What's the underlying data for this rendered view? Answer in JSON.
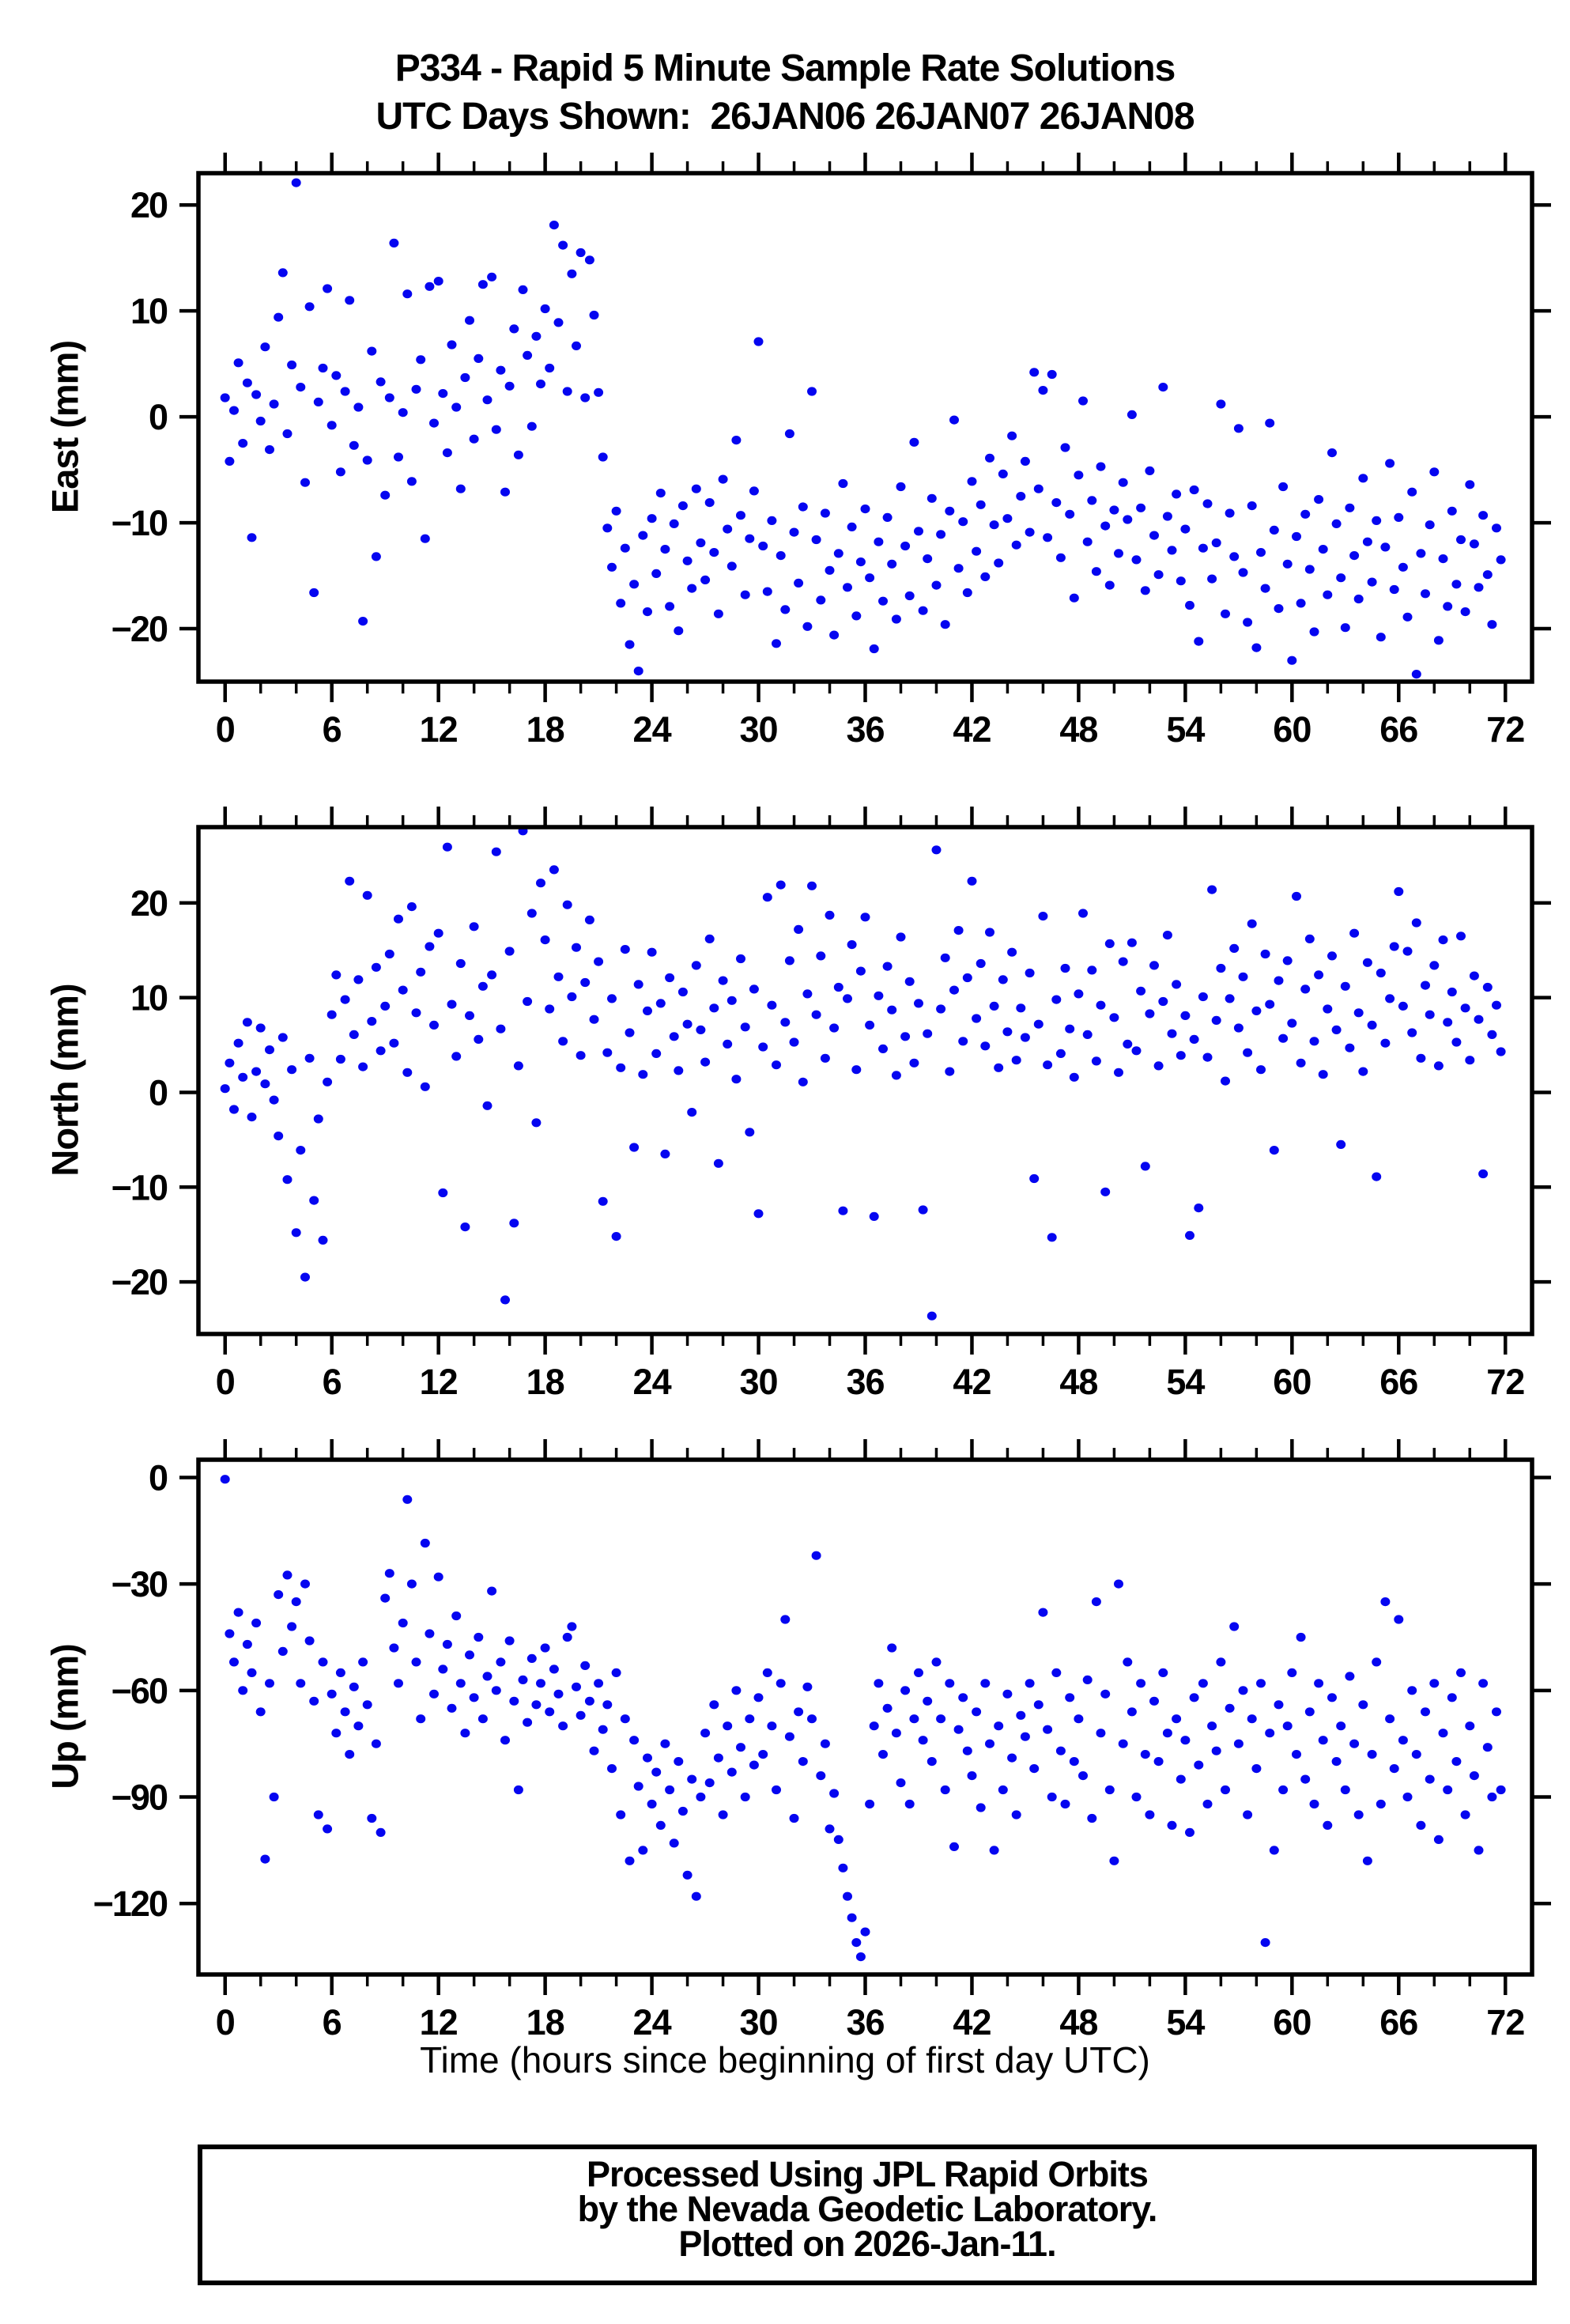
{
  "title": {
    "line1": "P334 - Rapid 5 Minute Sample Rate Solutions",
    "line2": "UTC Days Shown:  26JAN06 26JAN07 26JAN08"
  },
  "footer": {
    "lines": [
      "Processed Using JPL Rapid Orbits",
      "by the Nevada Geodetic Laboratory.",
      "Plotted on 2026-Jan-11."
    ]
  },
  "chart_data": {
    "type": "scatter",
    "title": "P334 - Rapid 5 Minute Sample Rate Solutions",
    "subtitle": "UTC Days Shown:  26JAN06 26JAN07 26JAN08",
    "xlabel": "Time (hours since beginning of first day UTC)",
    "marker_color": "#0505f0",
    "frame_color": "#000000",
    "xlim": [
      -1.5,
      73.5
    ],
    "x_ticks": [
      0,
      6,
      12,
      18,
      24,
      30,
      36,
      42,
      48,
      54,
      60,
      66,
      72
    ],
    "x_minor_step": 2,
    "grid": false,
    "legend": "none",
    "panels": [
      {
        "ylabel": "East (mm)",
        "ylim": [
          -25,
          23
        ],
        "y_ticks": [
          -20,
          -10,
          0,
          10,
          20
        ],
        "x_start": 0,
        "x_step": 0.25,
        "y": [
          1.8,
          -4.2,
          0.6,
          5.1,
          -2.5,
          3.2,
          -11.4,
          2.1,
          -0.4,
          6.6,
          -3.1,
          1.2,
          9.4,
          13.6,
          -1.6,
          4.9,
          22.1,
          2.8,
          -6.2,
          10.4,
          -16.6,
          1.4,
          4.6,
          12.1,
          -0.8,
          3.9,
          -5.2,
          2.4,
          11.0,
          -2.7,
          0.9,
          -19.3,
          -4.1,
          6.2,
          -13.2,
          3.3,
          -7.4,
          1.8,
          16.4,
          -3.8,
          0.4,
          11.6,
          -6.1,
          2.6,
          5.4,
          -11.5,
          12.3,
          -0.6,
          12.8,
          2.2,
          -3.4,
          6.8,
          0.9,
          -6.8,
          3.7,
          9.1,
          -2.1,
          5.5,
          12.5,
          1.6,
          13.2,
          -1.2,
          4.4,
          -7.1,
          2.9,
          8.3,
          -3.6,
          12.0,
          5.8,
          -0.9,
          7.6,
          3.1,
          10.2,
          4.6,
          18.1,
          8.9,
          16.2,
          2.4,
          13.5,
          6.7,
          15.5,
          1.8,
          14.8,
          9.6,
          2.3,
          -3.8,
          -10.5,
          -14.2,
          -8.9,
          -17.6,
          -12.4,
          -21.5,
          -15.8,
          -24.0,
          -11.2,
          -18.4,
          -9.6,
          -14.8,
          -7.2,
          -12.5,
          -17.9,
          -10.1,
          -20.2,
          -8.4,
          -13.6,
          -16.2,
          -6.8,
          -11.9,
          -15.4,
          -8.1,
          -12.8,
          -18.6,
          -5.9,
          -10.6,
          -14.1,
          -2.2,
          -9.3,
          -16.8,
          -11.5,
          -7.0,
          7.1,
          -12.2,
          -16.5,
          -9.8,
          -21.4,
          -13.1,
          -18.2,
          -1.6,
          -10.9,
          -15.7,
          -8.5,
          -19.8,
          2.4,
          -11.6,
          -17.3,
          -9.1,
          -14.5,
          -20.6,
          -12.9,
          -6.3,
          -16.1,
          -10.4,
          -18.8,
          -13.7,
          -8.7,
          -15.2,
          -21.9,
          -11.8,
          -17.4,
          -9.5,
          -13.9,
          -19.1,
          -6.6,
          -12.2,
          -16.9,
          -2.4,
          -10.8,
          -18.3,
          -13.4,
          -7.7,
          -15.9,
          -11.1,
          -19.6,
          -8.9,
          -0.3,
          -14.3,
          -9.9,
          -16.6,
          -6.1,
          -12.7,
          -8.3,
          -15.1,
          -3.9,
          -10.2,
          -13.8,
          -5.4,
          -9.6,
          -1.8,
          -12.1,
          -7.5,
          -4.2,
          -10.9,
          4.2,
          -6.8,
          2.5,
          -11.4,
          4.0,
          -8.1,
          -13.3,
          -2.9,
          -9.2,
          -17.1,
          -5.5,
          1.5,
          -11.8,
          -7.9,
          -14.6,
          -4.7,
          -10.3,
          -15.9,
          -8.8,
          -12.9,
          -6.2,
          -9.7,
          0.2,
          -13.5,
          -8.6,
          -16.4,
          -5.1,
          -11.2,
          -14.9,
          2.8,
          -9.4,
          -12.6,
          -7.3,
          -15.5,
          -10.6,
          -17.8,
          -6.9,
          -21.2,
          -12.4,
          -8.2,
          -15.3,
          -11.9,
          1.2,
          -18.6,
          -9.1,
          -13.2,
          -1.1,
          -14.7,
          -19.4,
          -8.4,
          -21.8,
          -12.8,
          -16.2,
          -0.6,
          -10.7,
          -18.1,
          -6.6,
          -13.9,
          -23.0,
          -11.3,
          -17.6,
          -9.2,
          -14.4,
          -20.3,
          -7.8,
          -12.5,
          -16.8,
          -3.4,
          -10.1,
          -15.2,
          -19.9,
          -8.6,
          -13.1,
          -17.2,
          -5.8,
          -11.8,
          -15.6,
          -9.8,
          -20.8,
          -12.3,
          -4.4,
          -16.3,
          -9.5,
          -14.2,
          -18.9,
          -7.1,
          -24.3,
          -12.9,
          -16.7,
          -10.2,
          -5.2,
          -21.1,
          -13.4,
          -17.9,
          -8.9,
          -15.8,
          -11.6,
          -18.4,
          -6.4,
          -12.0,
          -16.1,
          -9.3,
          -14.9,
          -19.6,
          -10.5,
          -13.5
        ]
      },
      {
        "ylabel": "North (mm)",
        "ylim": [
          -25.5,
          28
        ],
        "y_ticks": [
          -20,
          -10,
          0,
          10,
          20
        ],
        "x_start": 0,
        "x_step": 0.25,
        "y": [
          0.4,
          3.1,
          -1.8,
          5.2,
          1.6,
          7.4,
          -2.6,
          2.2,
          6.8,
          0.9,
          4.5,
          -0.8,
          -4.6,
          5.8,
          -9.2,
          2.4,
          -14.8,
          -6.1,
          -19.5,
          3.6,
          -11.4,
          -2.8,
          -15.6,
          1.1,
          8.2,
          12.4,
          3.5,
          9.8,
          22.3,
          6.1,
          11.9,
          2.7,
          20.8,
          7.5,
          13.2,
          4.4,
          9.1,
          14.6,
          5.2,
          18.3,
          10.8,
          2.1,
          19.6,
          8.4,
          12.7,
          0.6,
          15.4,
          7.1,
          16.8,
          -10.6,
          25.9,
          9.3,
          3.8,
          13.6,
          -14.2,
          8.1,
          17.5,
          5.6,
          11.2,
          -1.4,
          12.4,
          25.4,
          6.7,
          -21.9,
          14.9,
          -13.8,
          2.8,
          27.6,
          9.6,
          18.9,
          -3.2,
          22.1,
          16.1,
          8.8,
          23.5,
          12.2,
          5.4,
          19.8,
          10.1,
          15.3,
          3.9,
          11.6,
          18.2,
          7.7,
          13.8,
          -11.5,
          4.2,
          9.9,
          -15.2,
          2.6,
          15.1,
          6.3,
          -5.8,
          11.4,
          1.9,
          8.6,
          14.8,
          4.1,
          9.4,
          -6.5,
          12.1,
          5.9,
          2.3,
          10.6,
          7.2,
          -2.1,
          13.4,
          6.6,
          3.2,
          16.2,
          8.9,
          -7.5,
          11.8,
          5.1,
          9.7,
          1.4,
          14.1,
          6.9,
          -4.2,
          10.9,
          -12.8,
          4.8,
          20.6,
          9.2,
          2.9,
          21.9,
          7.4,
          13.9,
          5.3,
          17.2,
          1.1,
          10.4,
          21.8,
          8.2,
          14.4,
          3.6,
          18.7,
          6.8,
          11.1,
          -12.5,
          9.9,
          15.6,
          2.4,
          12.8,
          18.5,
          7.1,
          -13.1,
          10.2,
          4.6,
          13.3,
          8.7,
          1.8,
          16.4,
          5.9,
          11.7,
          3.1,
          9.4,
          -12.4,
          6.2,
          -23.6,
          25.6,
          8.8,
          14.2,
          2.2,
          10.8,
          17.1,
          5.4,
          12.1,
          22.3,
          7.8,
          13.6,
          4.9,
          16.9,
          9.1,
          2.6,
          11.9,
          6.4,
          14.8,
          3.4,
          8.9,
          5.8,
          12.6,
          -9.1,
          7.2,
          18.6,
          2.9,
          -15.3,
          9.8,
          4.1,
          13.1,
          6.7,
          1.6,
          10.4,
          18.9,
          6.1,
          12.9,
          3.3,
          9.2,
          -10.5,
          15.7,
          7.9,
          2.1,
          13.8,
          5.1,
          15.8,
          4.4,
          10.7,
          -7.8,
          8.3,
          13.4,
          2.8,
          9.6,
          16.6,
          6.2,
          11.4,
          3.9,
          8.1,
          -15.1,
          5.6,
          -12.2,
          10.1,
          3.7,
          21.4,
          7.6,
          13.1,
          1.2,
          9.9,
          15.2,
          6.8,
          12.2,
          4.2,
          17.8,
          8.6,
          2.4,
          14.6,
          9.3,
          -6.1,
          11.8,
          5.7,
          13.9,
          7.3,
          20.7,
          3.1,
          10.9,
          16.2,
          5.4,
          12.4,
          1.9,
          8.8,
          14.4,
          6.6,
          -5.5,
          11.2,
          4.7,
          16.8,
          8.4,
          2.2,
          13.7,
          7.1,
          -8.9,
          12.6,
          5.2,
          9.9,
          15.4,
          21.2,
          9.1,
          14.9,
          6.3,
          17.9,
          3.6,
          11.3,
          8.2,
          13.4,
          2.8,
          16.1,
          7.4,
          10.6,
          5.3,
          16.5,
          8.9,
          3.4,
          12.3,
          7.7,
          -8.6,
          11.1,
          6.1,
          9.2,
          4.3
        ]
      },
      {
        "ylabel": "Up (mm)",
        "ylim": [
          -140,
          5
        ],
        "y_ticks": [
          -120,
          -90,
          -60,
          -30,
          0
        ],
        "x_start": 0,
        "x_step": 0.25,
        "y": [
          -0.5,
          -44,
          -52,
          -38,
          -60,
          -47,
          -55,
          -41,
          -66,
          -107.5,
          -58,
          -90,
          -33,
          -49,
          -27.5,
          -42,
          -35,
          -58,
          -30,
          -46,
          -63,
          -95,
          -52,
          -99,
          -61,
          -72,
          -55,
          -66,
          -78,
          -59,
          -70,
          -52,
          -64,
          -96,
          -75,
          -100,
          -34,
          -27,
          -48,
          -58,
          -41,
          -6.2,
          -30,
          -52,
          -68,
          -18.5,
          -44,
          -61,
          -28,
          -54,
          -47,
          -65,
          -39,
          -58,
          -72,
          -50,
          -62,
          -45,
          -68,
          -56,
          -32,
          -60,
          -52,
          -74,
          -46,
          -63,
          -88,
          -57,
          -69,
          -51,
          -64,
          -58,
          -48,
          -66,
          -54,
          -61,
          -70,
          -45,
          -42,
          -59,
          -67,
          -53,
          -63,
          -77,
          -58,
          -71,
          -64,
          -82,
          -55,
          -95,
          -68,
          -108,
          -74,
          -87,
          -105,
          -79,
          -92,
          -83,
          -98,
          -75,
          -88,
          -103,
          -80,
          -94,
          -112,
          -85,
          -118,
          -90,
          -72,
          -86,
          -64,
          -79,
          -95,
          -70,
          -83,
          -60,
          -76,
          -90,
          -68,
          -81,
          -62,
          -78,
          -55,
          -70,
          -88,
          -58,
          -40,
          -73,
          -96,
          -66,
          -80,
          -59,
          -68,
          -22,
          -84,
          -75,
          -99,
          -89,
          -102,
          -110,
          -118,
          -124,
          -131,
          -135,
          -128,
          -92,
          -70,
          -58,
          -78,
          -65,
          -48,
          -72,
          -86,
          -60,
          -92,
          -68,
          -55,
          -74,
          -63,
          -80,
          -52,
          -68,
          -88,
          -58,
          -104,
          -71,
          -62,
          -77,
          -84,
          -66,
          -93,
          -58,
          -75,
          -105,
          -70,
          -88,
          -61,
          -79,
          -95,
          -67,
          -73,
          -58,
          -82,
          -64,
          -38,
          -71,
          -90,
          -55,
          -77,
          -92,
          -62,
          -80,
          -68,
          -84,
          -57,
          -96,
          -35,
          -72,
          -61,
          -88,
          -108,
          -30,
          -75,
          -52,
          -66,
          -90,
          -58,
          -78,
          -95,
          -63,
          -80,
          -55,
          -72,
          -98,
          -68,
          -85,
          -74,
          -100,
          -62,
          -81,
          -58,
          -92,
          -70,
          -77,
          -52,
          -88,
          -65,
          -42,
          -75,
          -60,
          -95,
          -68,
          -82,
          -58,
          -131,
          -72,
          -105,
          -64,
          -88,
          -70,
          -55,
          -78,
          -45,
          -85,
          -66,
          -92,
          -58,
          -74,
          -98,
          -62,
          -80,
          -70,
          -88,
          -56,
          -75,
          -95,
          -64,
          -108,
          -78,
          -52,
          -92,
          -35,
          -68,
          -82,
          -40,
          -74,
          -90,
          -60,
          -78,
          -98,
          -66,
          -85,
          -58,
          -102,
          -72,
          -88,
          -62,
          -80,
          -55,
          -95,
          -70,
          -84,
          -105,
          -58,
          -76,
          -90,
          -66,
          -88
        ]
      }
    ]
  }
}
